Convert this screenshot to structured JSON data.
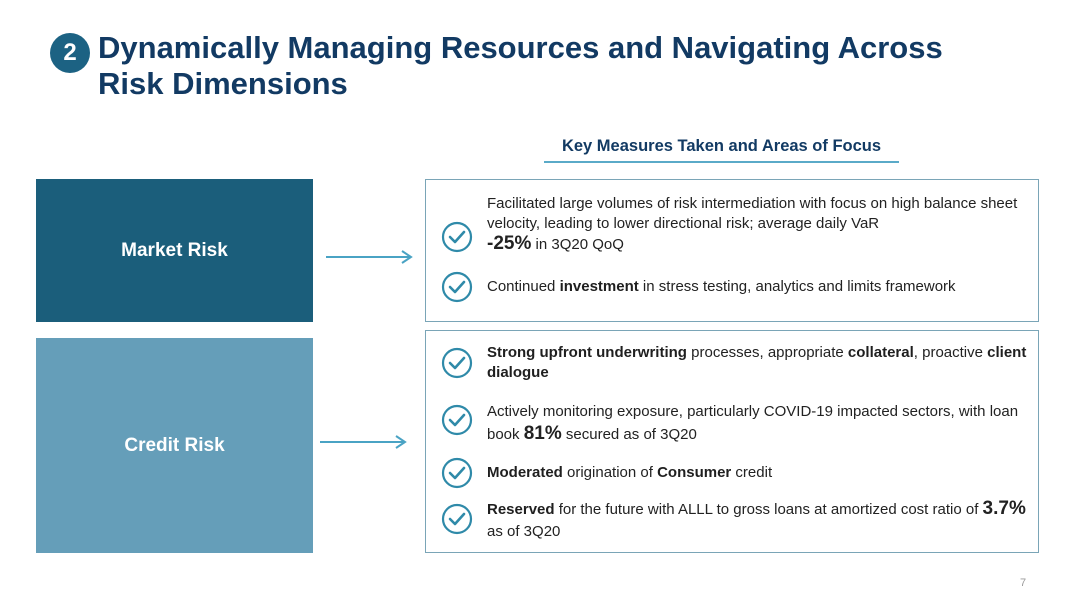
{
  "header": {
    "badge": "2",
    "title_line1": "Dynamically Managing Resources and Navigating Across",
    "title_line2": "Risk Dimensions"
  },
  "focus_heading": "Key Measures Taken and Areas of Focus",
  "market": {
    "label": "Market Risk",
    "items": [
      {
        "t1": "Facilitated large volumes of risk intermediation with focus on high balance sheet velocity, leading to lower directional risk; average daily VaR",
        "big": "-25%",
        "t2": " in 3Q20 QoQ"
      },
      {
        "t1": "Continued ",
        "b1": "investment",
        "t2": " in stress testing, analytics and limits framework"
      }
    ]
  },
  "credit": {
    "label": "Credit Risk",
    "items": [
      {
        "b1": "Strong upfront underwriting",
        "t1": " processes, appropriate ",
        "b2": "collateral",
        "t2": ", proactive ",
        "b3": "client dialogue"
      },
      {
        "t1": "Actively monitoring exposure, particularly COVID-19 impacted sectors, with loan book ",
        "big": "81%",
        "t2": " secured as of 3Q20"
      },
      {
        "b1": "Moderated",
        "t1": " origination of ",
        "b2": "Consumer",
        "t2": " credit"
      },
      {
        "b1": "Reserved",
        "t1": " for the future with ALLL to gross loans at amortized cost ratio of ",
        "big": "3.7%",
        "t2": " as of 3Q20"
      }
    ]
  },
  "colors": {
    "navy": "#123a63",
    "market": "#1b5e7b",
    "credit": "#659eb9",
    "accent": "#4aa3c4",
    "check": "#2f8aa9"
  },
  "page_number": "7"
}
